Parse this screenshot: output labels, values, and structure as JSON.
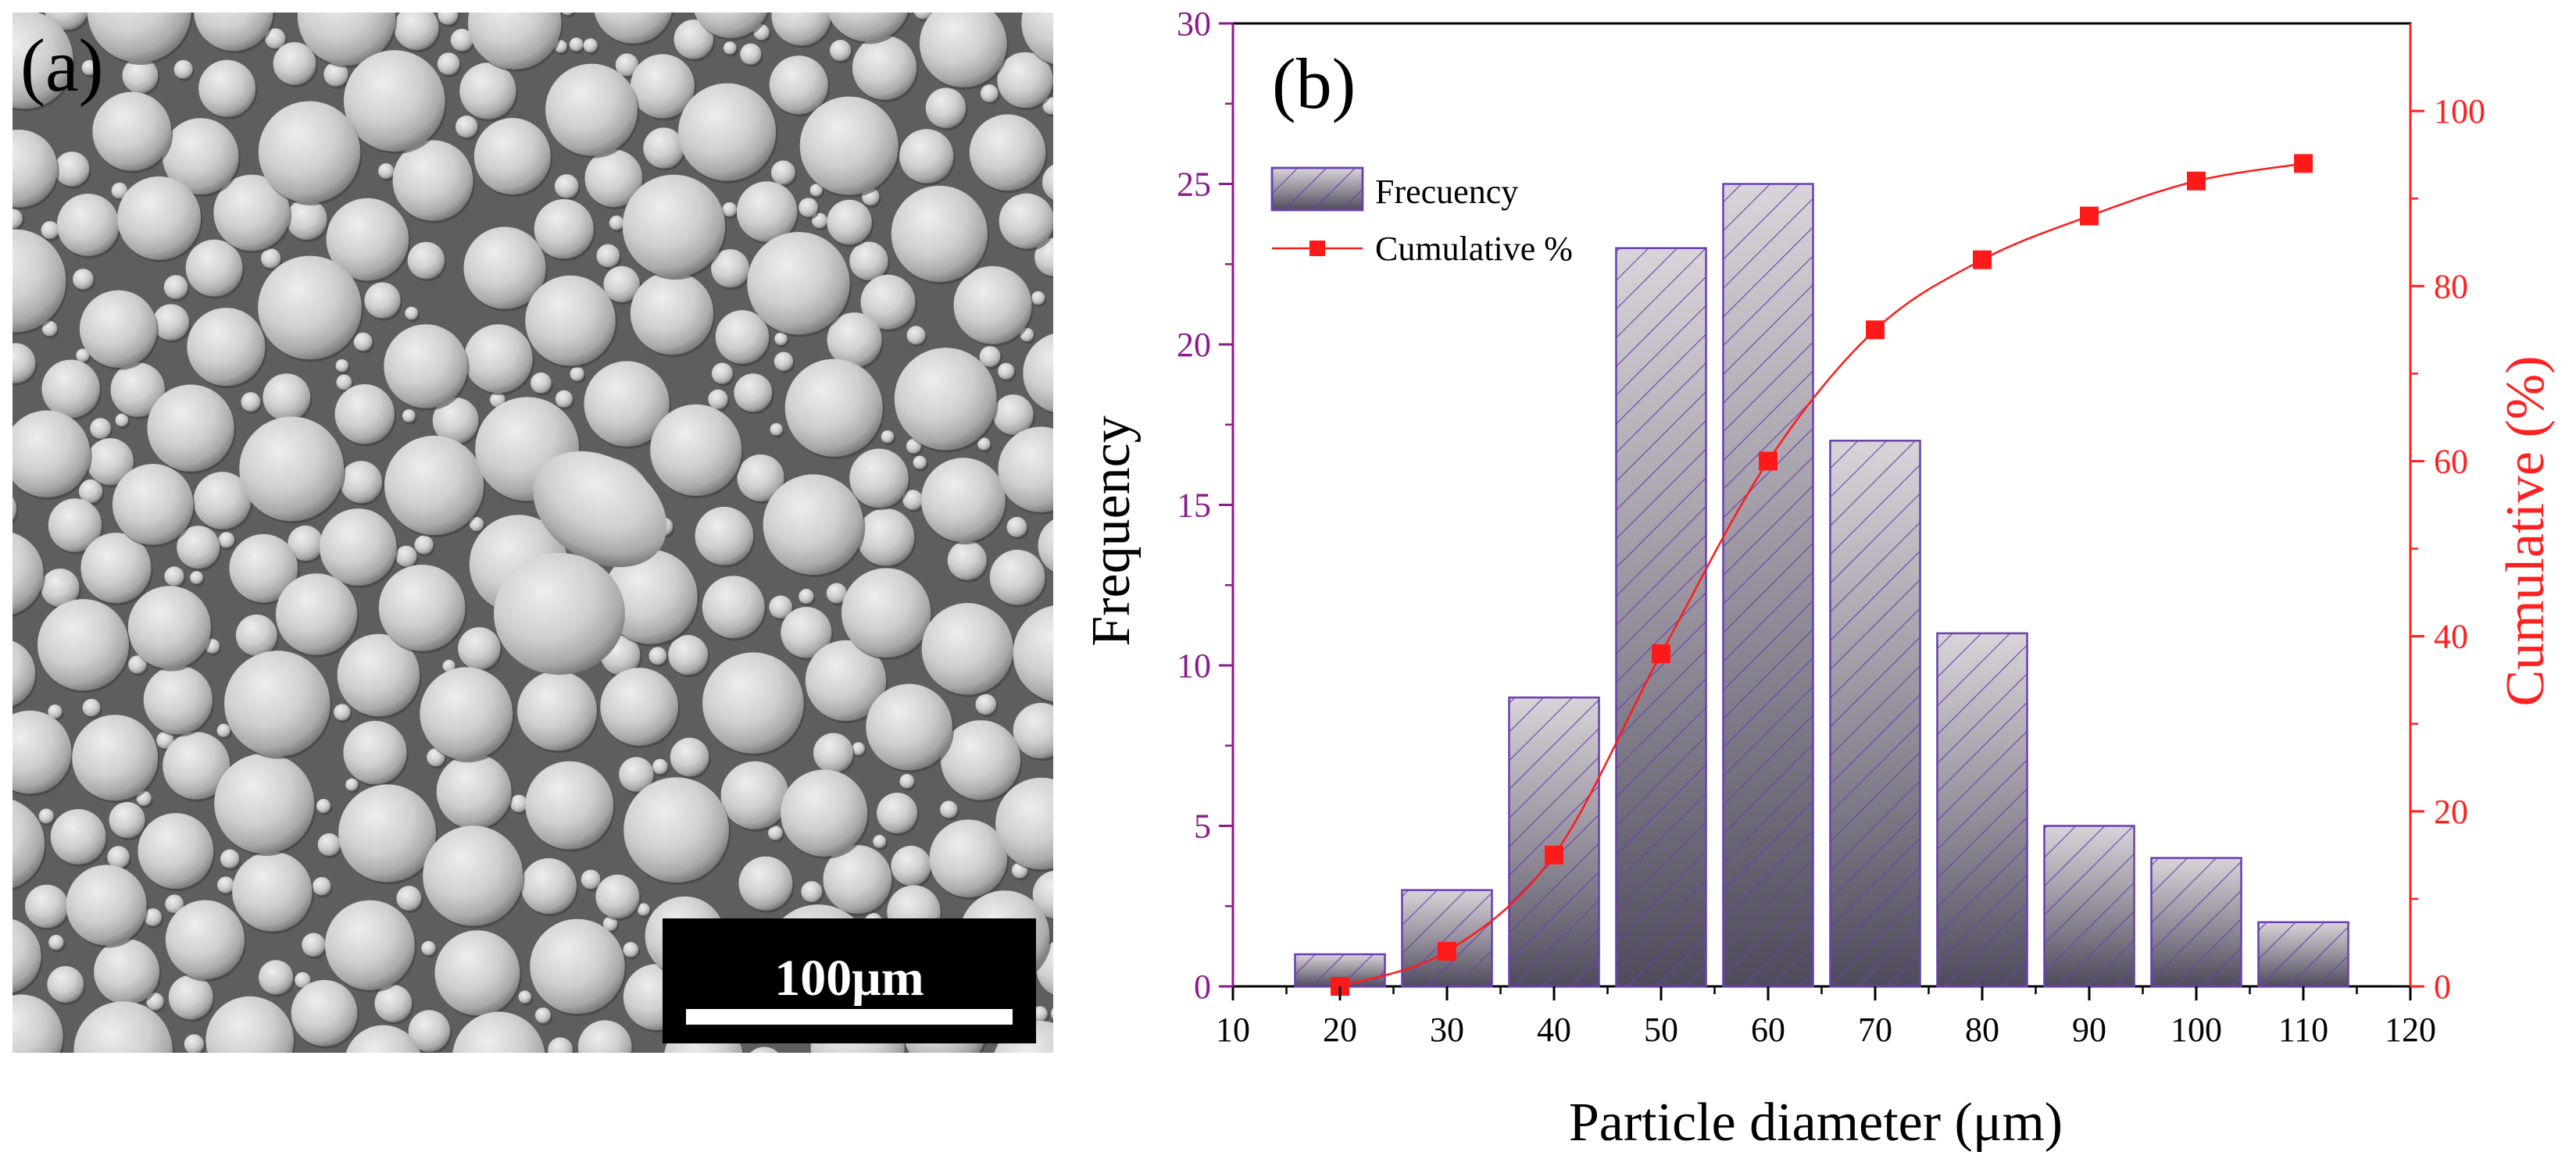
{
  "panel_a": {
    "label": "(a)",
    "scale_bar_text": "100μm"
  },
  "chart_data": {
    "type": "bar",
    "panel_label": "(b)",
    "title": "",
    "xlabel": "Particle diameter (μm)",
    "ylabel": "Frequency",
    "y2label": "Cumulative (%)",
    "xlim": [
      10,
      120
    ],
    "ylim": [
      0,
      30
    ],
    "y2lim": [
      0,
      110
    ],
    "x_ticks": [
      10,
      20,
      30,
      40,
      50,
      60,
      70,
      80,
      90,
      100,
      110,
      120
    ],
    "y_ticks": [
      0,
      5,
      10,
      15,
      20,
      25,
      30
    ],
    "y2_ticks": [
      0,
      20,
      40,
      60,
      80,
      100
    ],
    "legend_position": "top-left",
    "series": [
      {
        "name": "Frecuency",
        "kind": "bar",
        "axis": "left",
        "x": [
          20,
          30,
          40,
          50,
          60,
          70,
          80,
          90,
          100,
          110
        ],
        "values": [
          1,
          3,
          9,
          23,
          25,
          17,
          11,
          5,
          4,
          2
        ],
        "color": "#5a566a",
        "edge_color": "#6a3fae"
      },
      {
        "name": "Cumulative %",
        "kind": "line",
        "axis": "right",
        "x": [
          20,
          30,
          40,
          50,
          60,
          70,
          80,
          90,
          100,
          110
        ],
        "values": [
          0,
          4,
          15,
          38,
          60,
          75,
          83,
          88,
          92,
          94
        ],
        "color": "#ff1a1a"
      }
    ],
    "colors": {
      "left_axis": "#8b1a8b",
      "right_axis": "#ff2020",
      "axis": "#000000"
    }
  }
}
